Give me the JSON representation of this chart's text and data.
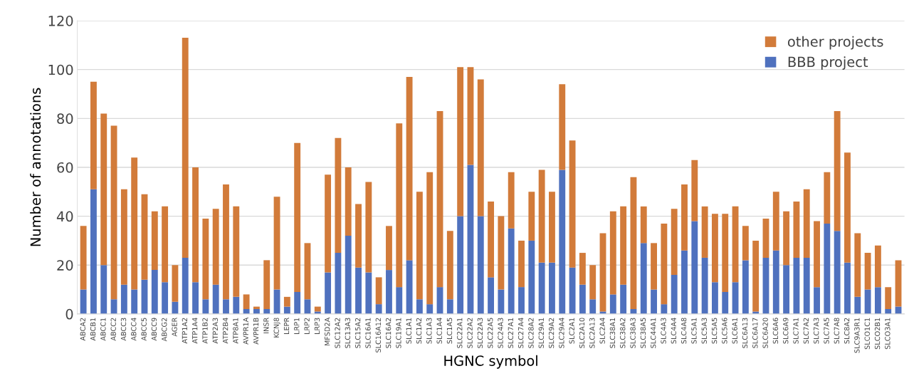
{
  "chart_data": {
    "type": "bar",
    "stacked": true,
    "xlabel": "HGNC symbol",
    "ylabel": "Number of annotations",
    "categories": [
      "ABCA2",
      "ABCB1",
      "ABCC1",
      "ABCC2",
      "ABCC3",
      "ABCC4",
      "ABCC5",
      "ABCC9",
      "ABCG2",
      "AGER",
      "ATP1A2",
      "ATP1A4",
      "ATP1B2",
      "ATP2A3",
      "ATP2B4",
      "ATP8A1",
      "AVPR1A",
      "AVPR1B",
      "INSR",
      "KCNJ8",
      "LEPR",
      "LRP1",
      "LRP2",
      "LRP3",
      "MFSD2A",
      "SLC12A2",
      "SLC13A3",
      "SLC15A2",
      "SLC16A1",
      "SLC16A12",
      "SLC16A2",
      "SLC19A1",
      "SLC1A1",
      "SLC1A2",
      "SLC1A3",
      "SLC1A4",
      "SLC1A5",
      "SLC22A1",
      "SLC22A2",
      "SLC22A3",
      "SLC22A5",
      "SLC24A3",
      "SLC27A1",
      "SLC27A4",
      "SLC28A2",
      "SLC29A1",
      "SLC29A2",
      "SLC29A4",
      "SLC2A1",
      "SLC2A10",
      "SLC2A13",
      "SLC2A4",
      "SLC38A1",
      "SLC38A2",
      "SLC38A3",
      "SLC38A5",
      "SLC44A1",
      "SLC4A3",
      "SLC4A4",
      "SLC4A8",
      "SLC5A1",
      "SLC5A3",
      "SLC5A5",
      "SLC5A6",
      "SLC6A1",
      "SLC6A13",
      "SLC6A17",
      "SLC6A20",
      "SLC6A6",
      "SLC6A9",
      "SLC7A1",
      "SLC7A2",
      "SLC7A3",
      "SLC7A5",
      "SLC7A8",
      "SLC8A2",
      "SLC9A3R1",
      "SLCO1C1",
      "SLCO2B1",
      "SLCO3A1",
      null
    ],
    "series": [
      {
        "name": "BBB project",
        "color": "#4f71be",
        "values": [
          10,
          51,
          20,
          6,
          12,
          10,
          14,
          18,
          13,
          5,
          23,
          13,
          6,
          12,
          6,
          7,
          2,
          2,
          2,
          10,
          3,
          9,
          6,
          1,
          17,
          25,
          32,
          19,
          17,
          4,
          18,
          11,
          22,
          6,
          4,
          11,
          6,
          40,
          61,
          40,
          15,
          10,
          35,
          11,
          30,
          21,
          21,
          59,
          19,
          12,
          6,
          1,
          8,
          12,
          2,
          29,
          10,
          4,
          16,
          26,
          38,
          23,
          13,
          9,
          13,
          22,
          1,
          23,
          26,
          20,
          23,
          23,
          11,
          37,
          34,
          21,
          7,
          10,
          11,
          2,
          3
        ]
      },
      {
        "name": "other projects",
        "color": "#d27b3a",
        "values": [
          26,
          44,
          62,
          71,
          39,
          54,
          35,
          24,
          31,
          15,
          90,
          47,
          33,
          31,
          47,
          37,
          6,
          1,
          20,
          38,
          4,
          61,
          23,
          2,
          40,
          47,
          28,
          26,
          37,
          11,
          18,
          67,
          75,
          44,
          54,
          72,
          28,
          61,
          40,
          56,
          31,
          30,
          23,
          19,
          20,
          38,
          29,
          35,
          52,
          13,
          14,
          32,
          34,
          32,
          54,
          15,
          19,
          33,
          27,
          27,
          25,
          21,
          28,
          32,
          31,
          14,
          29,
          16,
          24,
          22,
          23,
          28,
          27,
          21,
          49,
          45,
          26,
          15,
          17,
          9,
          19
        ]
      }
    ],
    "ylim": [
      0,
      120
    ],
    "yticks": [
      0,
      20,
      40,
      60,
      80,
      100,
      120
    ],
    "grid": "y",
    "legend": "top right"
  }
}
